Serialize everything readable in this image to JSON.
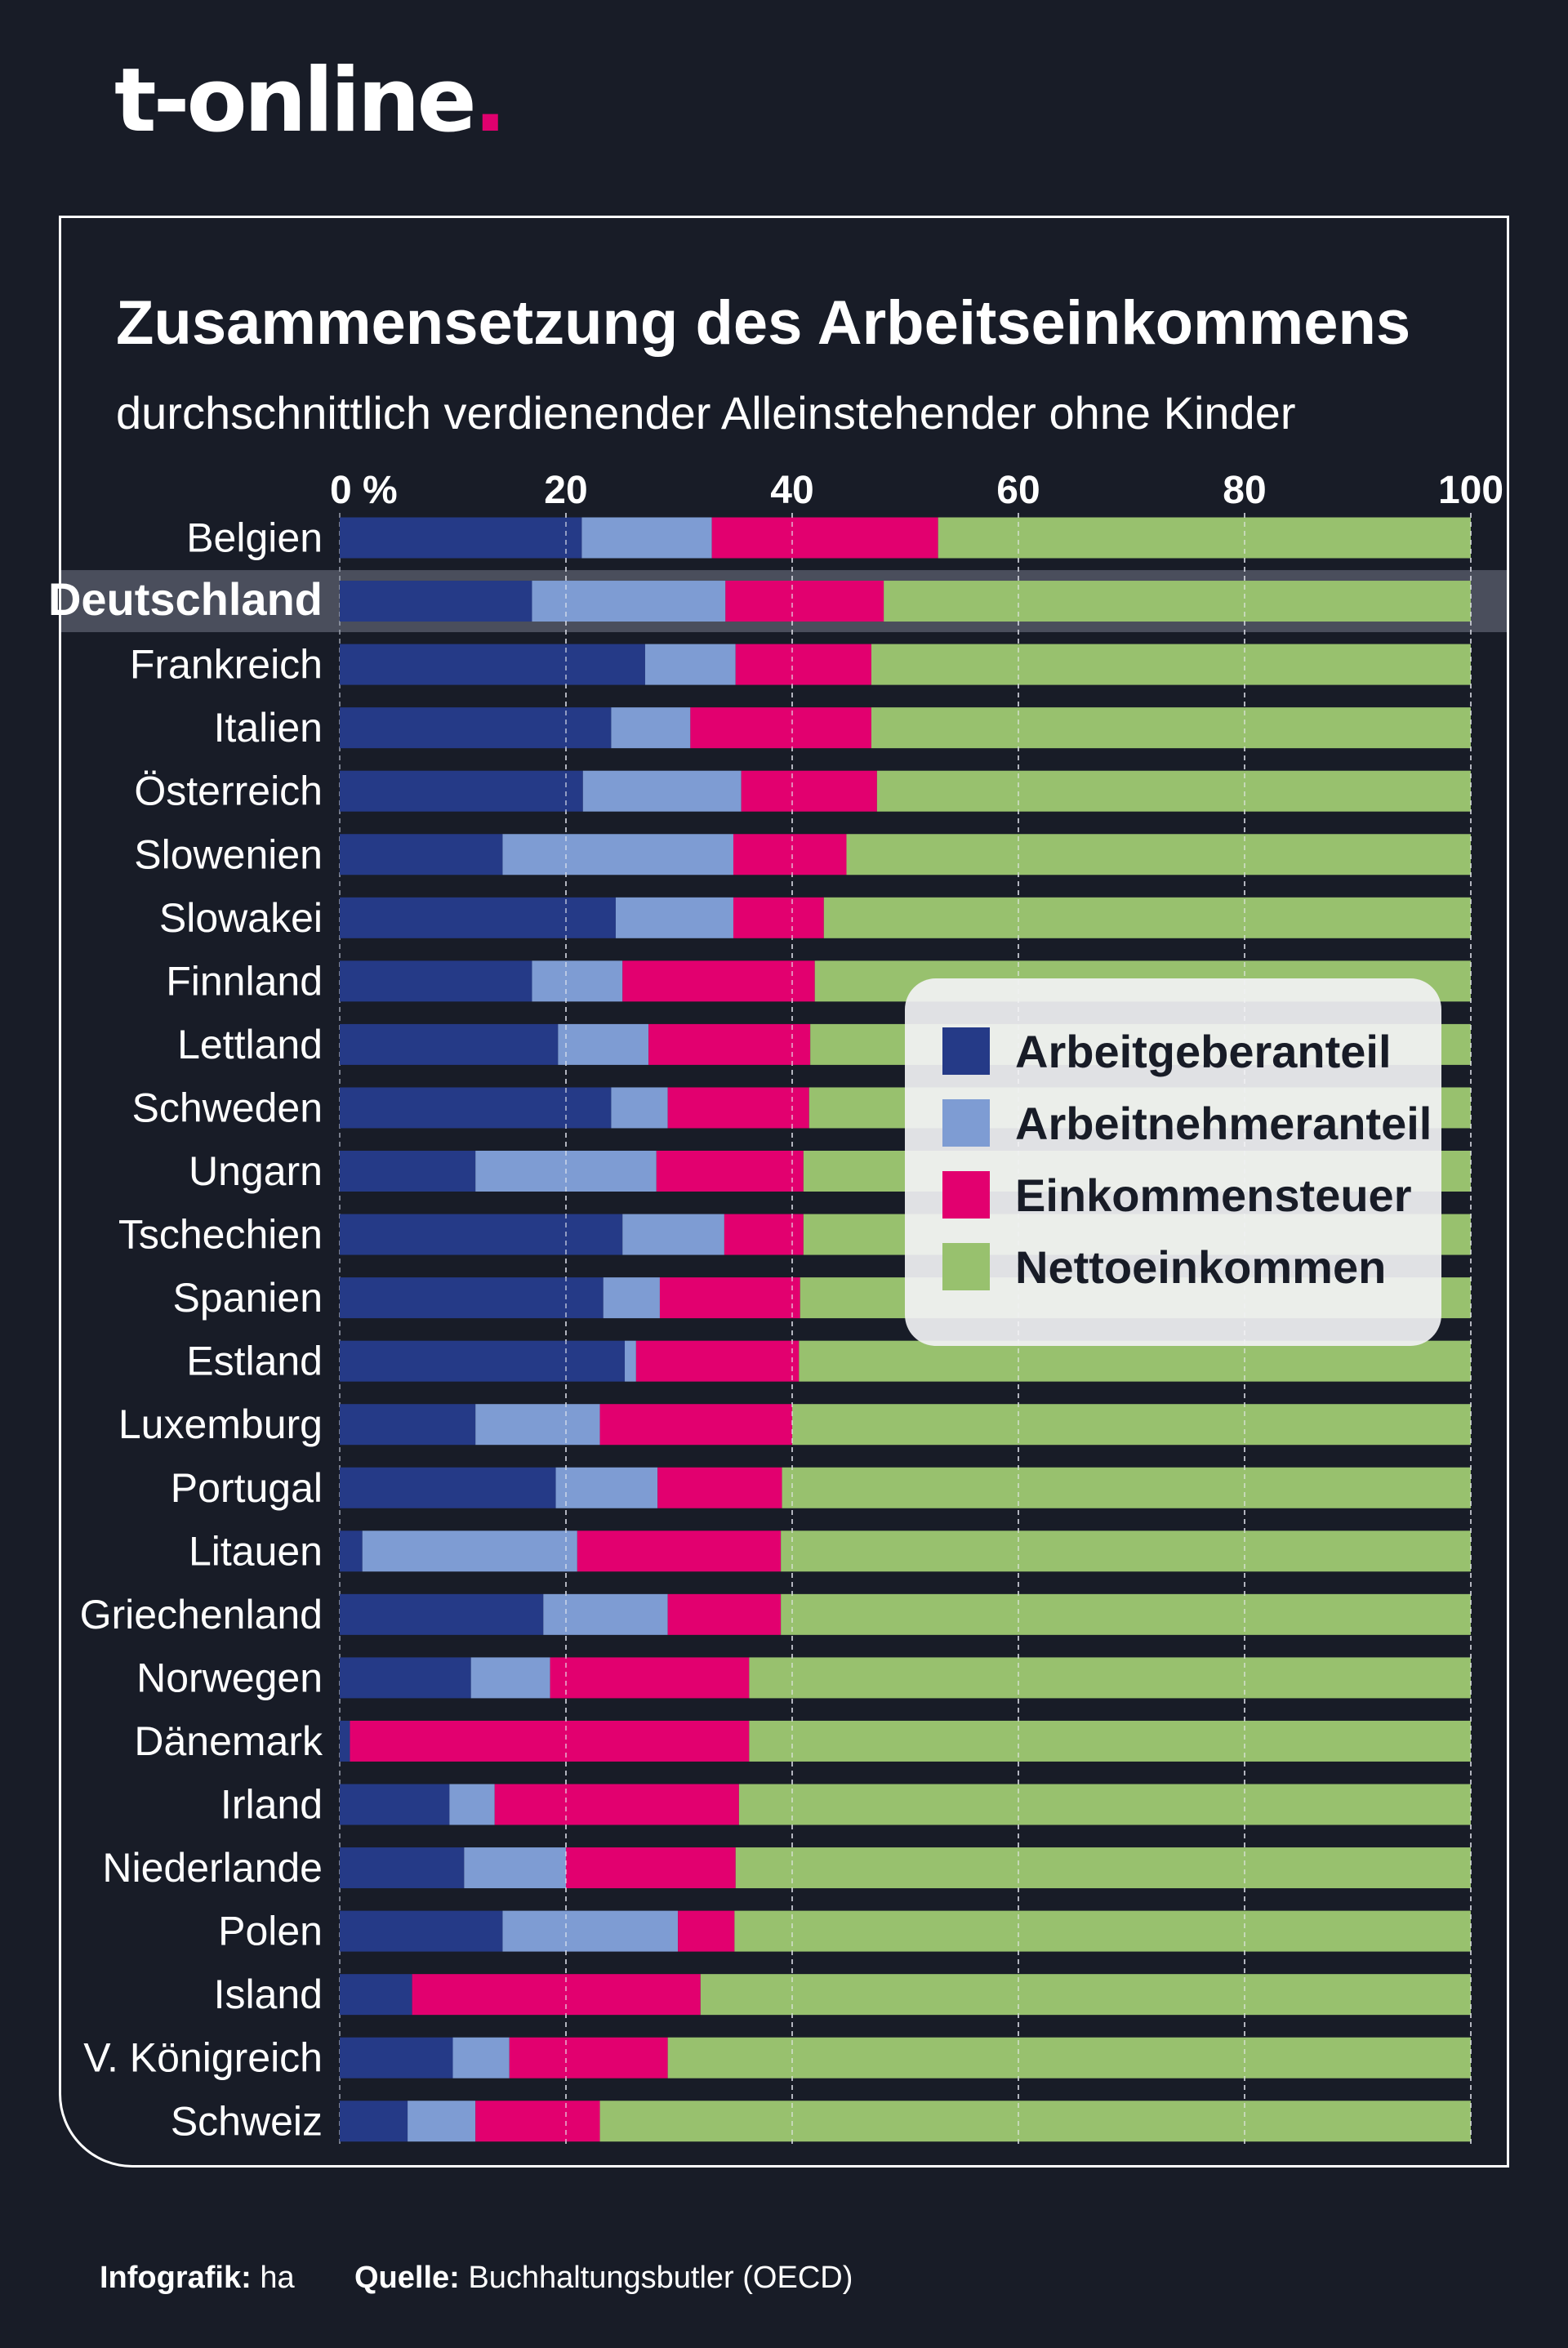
{
  "brand": {
    "name": "t-online",
    "dot": ".",
    "accent": "#e0006e"
  },
  "footer": {
    "infografik_label": "Infografik:",
    "infografik_value": "ha",
    "source_label": "Quelle:",
    "source_value": "Buchhaltungsbutler (OECD)"
  },
  "chart_data": {
    "type": "bar",
    "orientation": "horizontal",
    "stacked": true,
    "title": "Zusammensetzung des Arbeitseinkommens",
    "subtitle": "durchschnittlich verdienender Alleinstehender ohne Kinder",
    "xlim": [
      0,
      100
    ],
    "x_ticks": [
      "0 %",
      "20",
      "40",
      "60",
      "80",
      "100"
    ],
    "x_tick_values": [
      0,
      20,
      40,
      60,
      80,
      100
    ],
    "grid": "vertical dashed",
    "legend_position": "right",
    "highlight": "Deutschland",
    "categories": [
      "Belgien",
      "Deutschland",
      "Frankreich",
      "Italien",
      "Österreich",
      "Slowenien",
      "Slowakei",
      "Finnland",
      "Lettland",
      "Schweden",
      "Ungarn",
      "Tschechien",
      "Spanien",
      "Estland",
      "Luxemburg",
      "Portugal",
      "Litauen",
      "Griechenland",
      "Norwegen",
      "Dänemark",
      "Irland",
      "Niederlande",
      "Polen",
      "Island",
      "V. Königreich",
      "Schweiz"
    ],
    "series": [
      {
        "name": "Arbeitgeberanteil",
        "color": "#253a87",
        "values": [
          21.4,
          17.0,
          27.0,
          24.0,
          21.5,
          14.4,
          24.4,
          17.0,
          19.3,
          24.0,
          12.0,
          25.0,
          23.3,
          25.2,
          12.0,
          19.1,
          2.0,
          18.0,
          11.6,
          0.9,
          9.7,
          11.0,
          14.4,
          6.4,
          10.0,
          6.0
        ]
      },
      {
        "name": "Arbeitnehmeranteil",
        "color": "#7e9cd3",
        "values": [
          11.5,
          17.1,
          8.0,
          7.0,
          14.0,
          20.4,
          10.4,
          8.0,
          8.0,
          5.0,
          16.0,
          9.0,
          5.0,
          1.0,
          11.0,
          9.0,
          19.0,
          11.0,
          7.0,
          0.0,
          4.0,
          9.0,
          15.5,
          0.0,
          5.0,
          6.0
        ]
      },
      {
        "name": "Einkommensteuer",
        "color": "#e2006f",
        "values": [
          20.0,
          14.0,
          12.0,
          16.0,
          12.0,
          10.0,
          8.0,
          17.0,
          14.3,
          12.5,
          13.0,
          7.0,
          12.4,
          14.4,
          17.0,
          11.0,
          18.0,
          10.0,
          17.6,
          35.3,
          21.6,
          15.0,
          5.0,
          25.5,
          14.0,
          11.0
        ]
      },
      {
        "name": "Nettoeinkommen",
        "color": "#98c16e",
        "values": [
          47.1,
          51.9,
          53.0,
          53.0,
          52.5,
          55.2,
          57.2,
          58.0,
          58.4,
          58.5,
          59.0,
          59.0,
          59.3,
          59.4,
          60.0,
          60.9,
          61.0,
          61.0,
          63.8,
          63.8,
          64.7,
          65.0,
          65.1,
          68.1,
          71.0,
          77.0
        ]
      }
    ]
  }
}
